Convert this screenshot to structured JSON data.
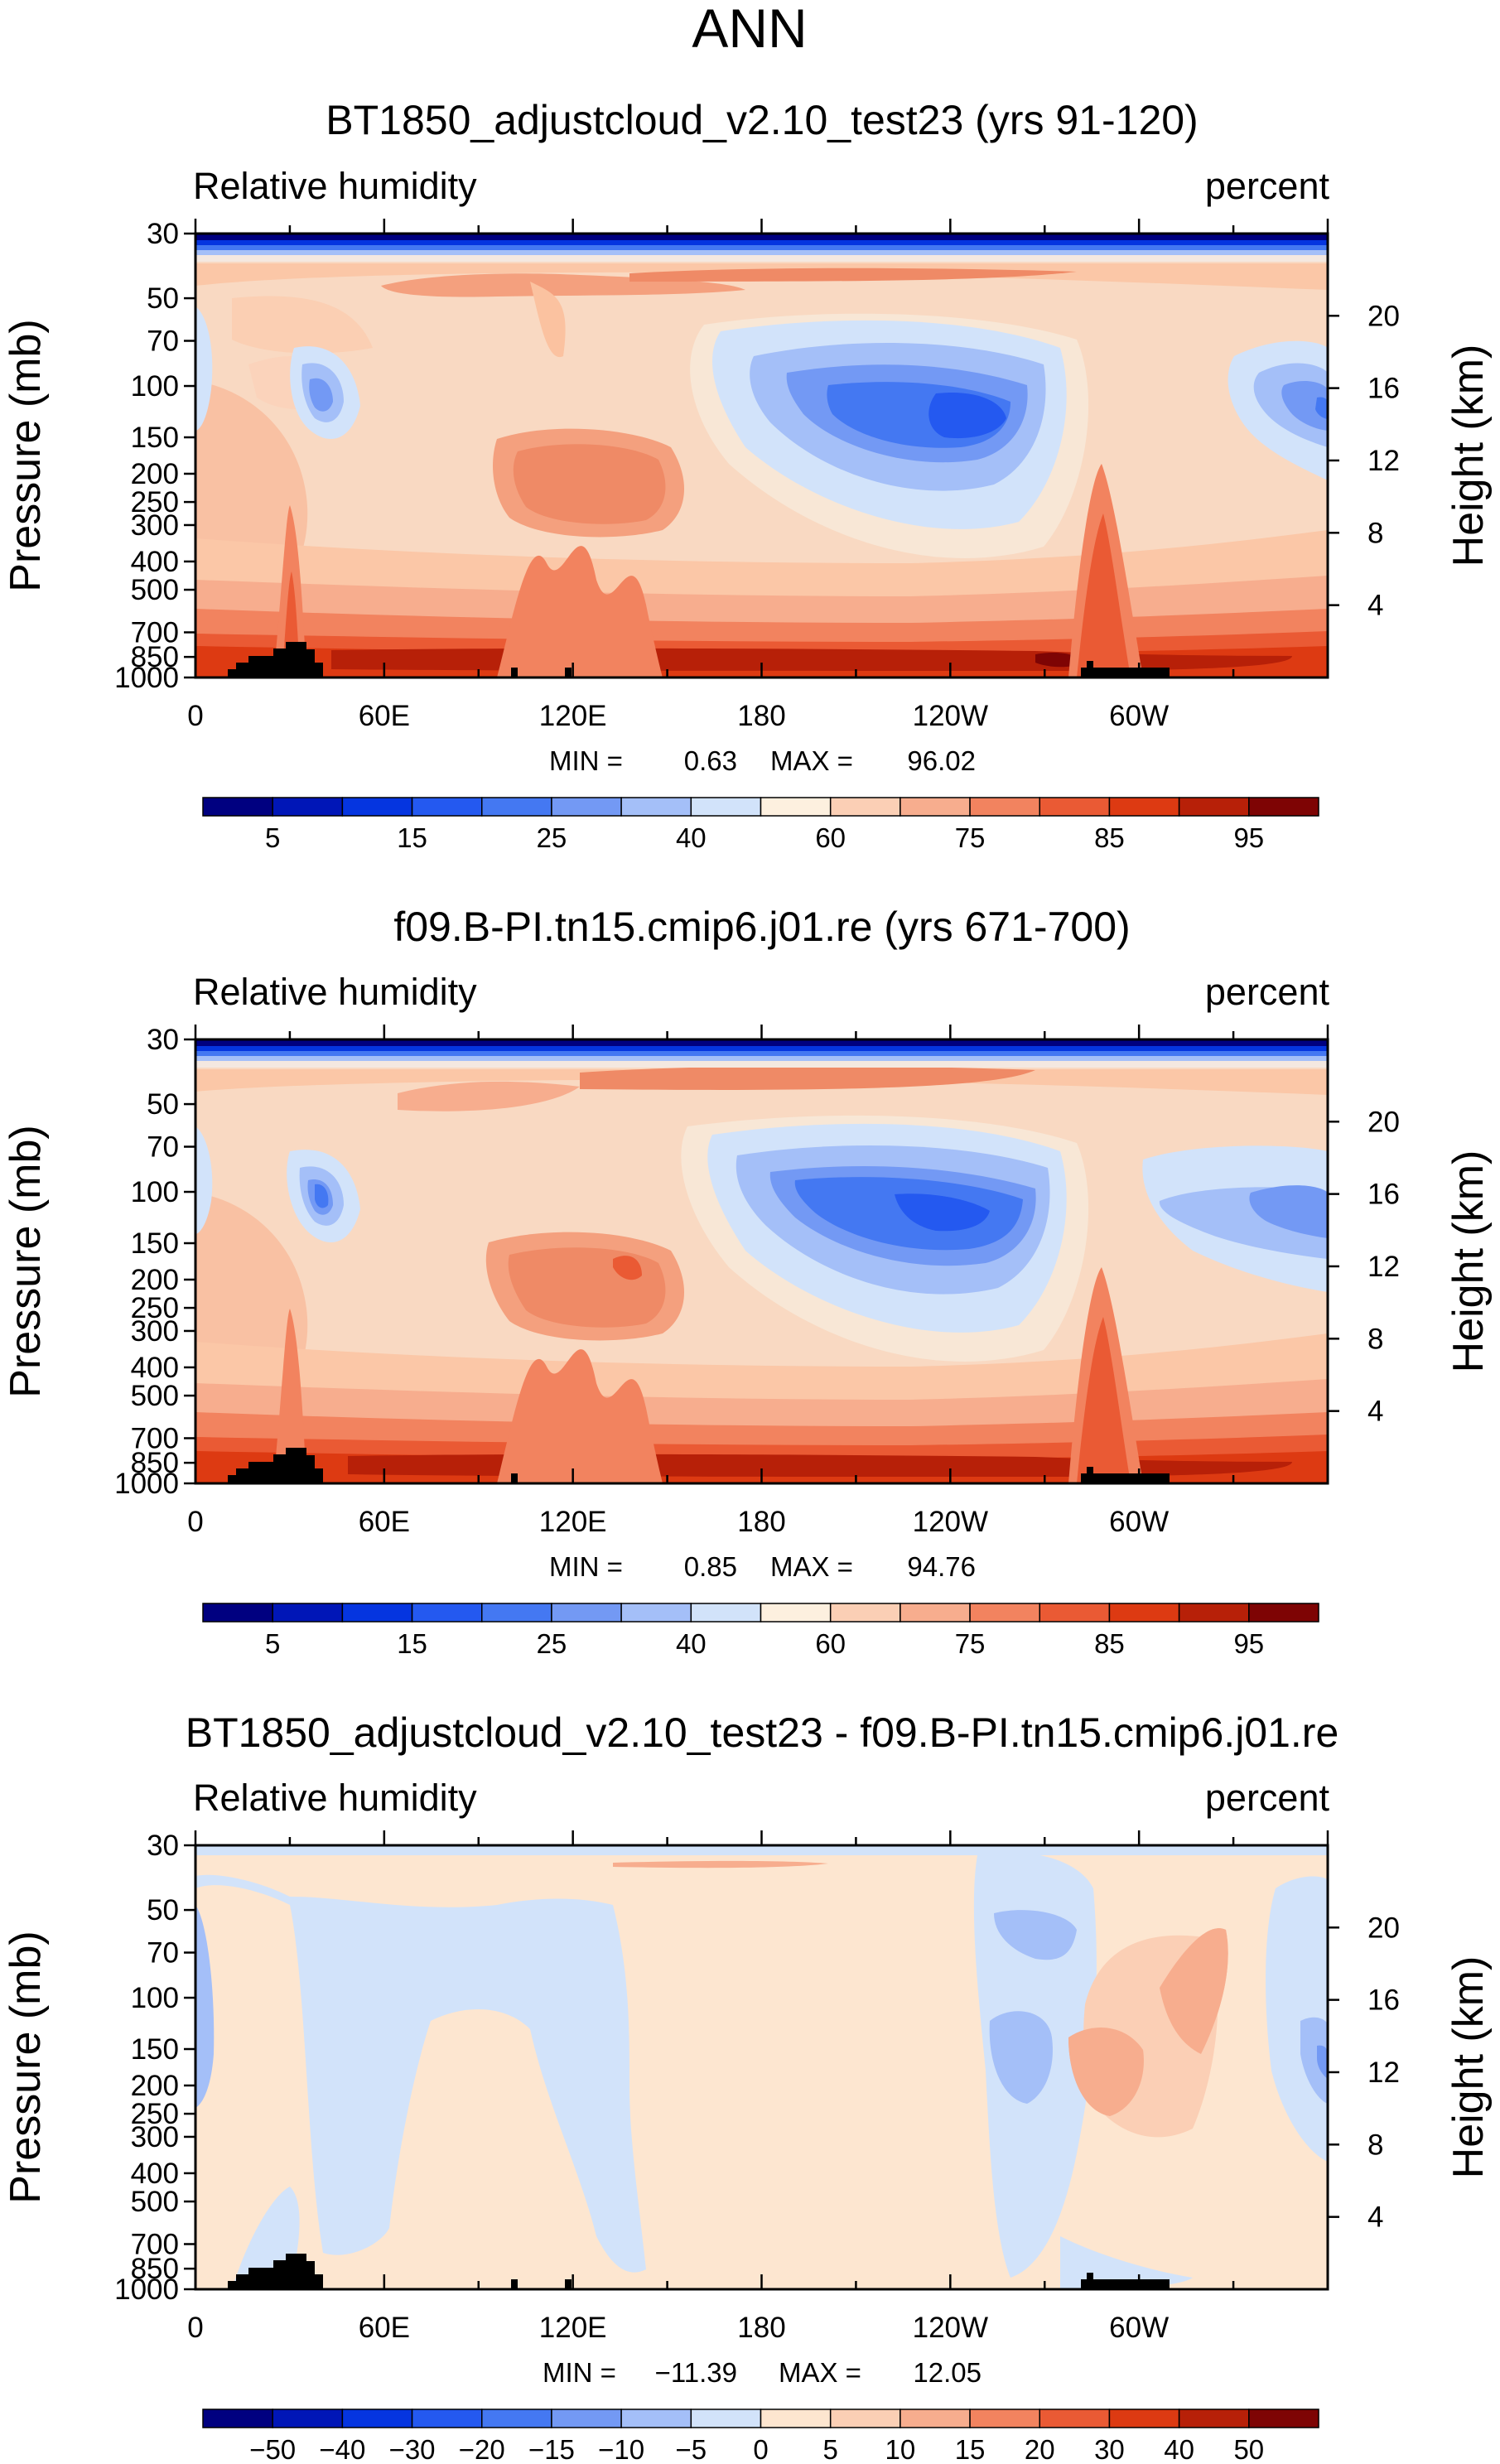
{
  "figure": {
    "title": "ANN",
    "colors": {
      "rh_scale": [
        "#000080",
        "#0016b7",
        "#0535e0",
        "#2459f0",
        "#4478f2",
        "#7399f4",
        "#a4bff8",
        "#d2e3fa",
        "#fdf0df",
        "#fbcfb5",
        "#f7ad8e",
        "#f2835f",
        "#ea5a34",
        "#dd3a12",
        "#b72008",
        "#7e0404"
      ],
      "diff_scale": [
        "#000080",
        "#0016b7",
        "#0535e0",
        "#2459f0",
        "#4478f2",
        "#7399f4",
        "#a4bff8",
        "#d2e3fa",
        "#fde6d0",
        "#fbcfb5",
        "#f7ad8e",
        "#f2835f",
        "#ea5a34",
        "#dd3a12",
        "#b72008",
        "#7e0404"
      ],
      "land": "#000000"
    }
  },
  "chart_data": [
    {
      "type": "heatmap",
      "title": "BT1850_adjustcloud_v2.10_test23 (yrs 91-120)",
      "variable": "Relative humidity",
      "units": "percent",
      "ylabel": "Pressure (mb)",
      "y2label": "Height (km)",
      "x_ticks": [
        "0",
        "60E",
        "120E",
        "180",
        "120W",
        "60W"
      ],
      "pressure_ticks": [
        "30",
        "50",
        "70",
        "100",
        "150",
        "200",
        "250",
        "300",
        "400",
        "500",
        "700",
        "850",
        "1000"
      ],
      "height_ticks": [
        "20",
        "16",
        "12",
        "8",
        "4"
      ],
      "stats": {
        "min_label": "MIN =",
        "min": "0.63",
        "max_label": "MAX =",
        "max": "96.02"
      },
      "colorbar_labels": [
        "5",
        "15",
        "25",
        "40",
        "60",
        "75",
        "85",
        "95"
      ],
      "colorbar_levels": [
        5,
        10,
        15,
        20,
        25,
        30,
        40,
        50,
        60,
        70,
        75,
        80,
        85,
        90,
        95
      ]
    },
    {
      "type": "heatmap",
      "title": "f09.B-PI.tn15.cmip6.j01.re (yrs 671-700)",
      "variable": "Relative humidity",
      "units": "percent",
      "ylabel": "Pressure (mb)",
      "y2label": "Height (km)",
      "x_ticks": [
        "0",
        "60E",
        "120E",
        "180",
        "120W",
        "60W"
      ],
      "pressure_ticks": [
        "30",
        "50",
        "70",
        "100",
        "150",
        "200",
        "250",
        "300",
        "400",
        "500",
        "700",
        "850",
        "1000"
      ],
      "height_ticks": [
        "20",
        "16",
        "12",
        "8",
        "4"
      ],
      "stats": {
        "min_label": "MIN =",
        "min": "0.85",
        "max_label": "MAX =",
        "max": "94.76"
      },
      "colorbar_labels": [
        "5",
        "15",
        "25",
        "40",
        "60",
        "75",
        "85",
        "95"
      ],
      "colorbar_levels": [
        5,
        10,
        15,
        20,
        25,
        30,
        40,
        50,
        60,
        70,
        75,
        80,
        85,
        90,
        95
      ]
    },
    {
      "type": "heatmap",
      "title": "BT1850_adjustcloud_v2.10_test23 - f09.B-PI.tn15.cmip6.j01.re",
      "variable": "Relative humidity",
      "units": "percent",
      "ylabel": "Pressure (mb)",
      "y2label": "Height (km)",
      "x_ticks": [
        "0",
        "60E",
        "120E",
        "180",
        "120W",
        "60W"
      ],
      "pressure_ticks": [
        "30",
        "50",
        "70",
        "100",
        "150",
        "200",
        "250",
        "300",
        "400",
        "500",
        "700",
        "850",
        "1000"
      ],
      "height_ticks": [
        "20",
        "16",
        "12",
        "8",
        "4"
      ],
      "stats": {
        "min_label": "MIN =",
        "min": "−11.39",
        "max_label": "MAX =",
        "max": "12.05"
      },
      "colorbar_labels": [
        "−50",
        "−40",
        "−30",
        "−20",
        "−15",
        "−10",
        "−5",
        "0",
        "5",
        "10",
        "15",
        "20",
        "30",
        "40",
        "50"
      ],
      "colorbar_levels": [
        -50,
        -40,
        -30,
        -20,
        -15,
        -10,
        -5,
        0,
        5,
        10,
        15,
        20,
        30,
        40,
        50
      ]
    }
  ]
}
